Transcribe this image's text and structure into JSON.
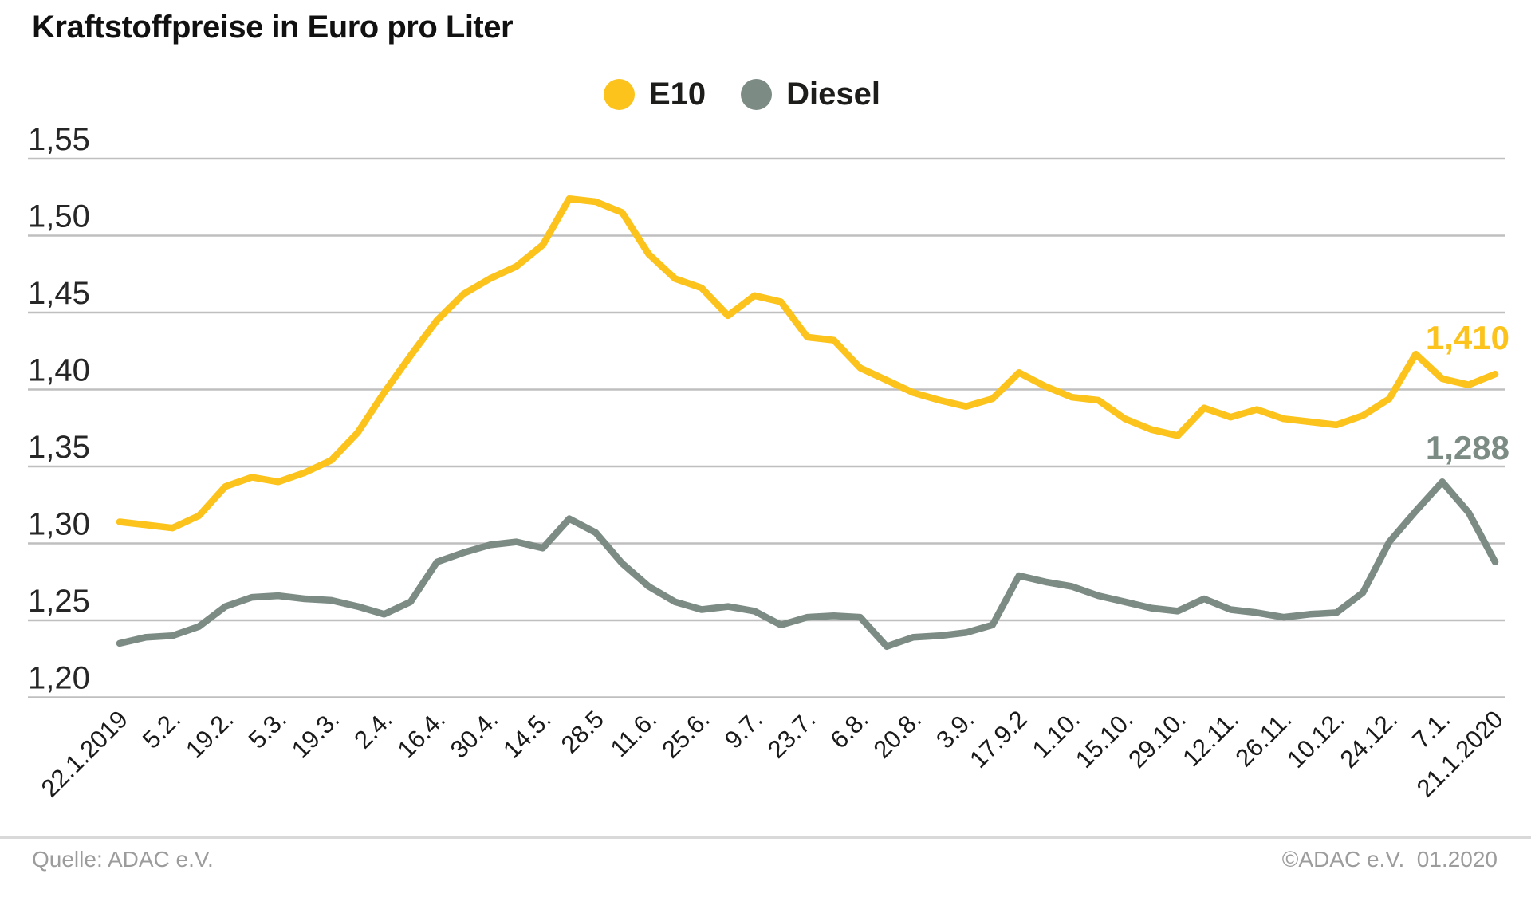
{
  "title": "Kraftstoffpreise in Euro pro Liter",
  "footer": {
    "source": "Quelle: ADAC e.V.",
    "copyright": "©ADAC e.V.  01.2020"
  },
  "colors": {
    "e10": "#FBC31C",
    "diesel": "#7C8C85",
    "grid": "#BFBFBF",
    "axis_text": "#1D1D1B",
    "footer_text": "#9C9C9C"
  },
  "chart_data": {
    "type": "line",
    "title": "Kraftstoffpreise in Euro pro Liter",
    "ylabel": "Euro pro Liter",
    "ylim": [
      1.2,
      1.55
    ],
    "grid": true,
    "legend_position": "top-center",
    "y_tick_labels": [
      "1,55",
      "1,50",
      "1,45",
      "1,40",
      "1,35",
      "1,30",
      "1,25",
      "1,20"
    ],
    "y_tick_values": [
      1.55,
      1.5,
      1.45,
      1.4,
      1.35,
      1.3,
      1.25,
      1.2
    ],
    "x_tick_labels": [
      "22.1.2019",
      "5.2.",
      "19.2.",
      "5.3.",
      "19.3.",
      "2.4.",
      "16.4.",
      "30.4.",
      "14.5.",
      "28.5",
      "11.6.",
      "25.6.",
      "9.7.",
      "23.7.",
      "6.8.",
      "20.8.",
      "3.9.",
      "17.9.2",
      "1.10.",
      "15.10.",
      "29.10.",
      "12.11.",
      "26.11.",
      "10.12.",
      "24.12.",
      "7.1.",
      "21.1.2020"
    ],
    "x_ticks_every_n_points": 2,
    "series": [
      {
        "name": "E10",
        "color": "#FBC31C",
        "end_label": "1,410",
        "values": [
          1.314,
          1.312,
          1.31,
          1.318,
          1.337,
          1.343,
          1.34,
          1.346,
          1.354,
          1.372,
          1.398,
          1.422,
          1.445,
          1.462,
          1.472,
          1.48,
          1.494,
          1.524,
          1.522,
          1.515,
          1.488,
          1.472,
          1.466,
          1.448,
          1.461,
          1.457,
          1.434,
          1.432,
          1.414,
          1.406,
          1.398,
          1.393,
          1.389,
          1.394,
          1.411,
          1.402,
          1.395,
          1.393,
          1.381,
          1.374,
          1.37,
          1.388,
          1.382,
          1.387,
          1.381,
          1.379,
          1.377,
          1.383,
          1.394,
          1.423,
          1.407,
          1.403,
          1.41
        ]
      },
      {
        "name": "Diesel",
        "color": "#7C8C85",
        "end_label": "1,288",
        "values": [
          1.235,
          1.239,
          1.24,
          1.246,
          1.259,
          1.265,
          1.266,
          1.264,
          1.263,
          1.259,
          1.254,
          1.262,
          1.288,
          1.294,
          1.299,
          1.301,
          1.297,
          1.316,
          1.307,
          1.287,
          1.272,
          1.262,
          1.257,
          1.259,
          1.256,
          1.247,
          1.252,
          1.253,
          1.252,
          1.233,
          1.239,
          1.24,
          1.242,
          1.247,
          1.279,
          1.275,
          1.272,
          1.266,
          1.262,
          1.258,
          1.256,
          1.264,
          1.257,
          1.255,
          1.252,
          1.254,
          1.255,
          1.268,
          1.301,
          1.321,
          1.34,
          1.32,
          1.288
        ]
      }
    ]
  }
}
